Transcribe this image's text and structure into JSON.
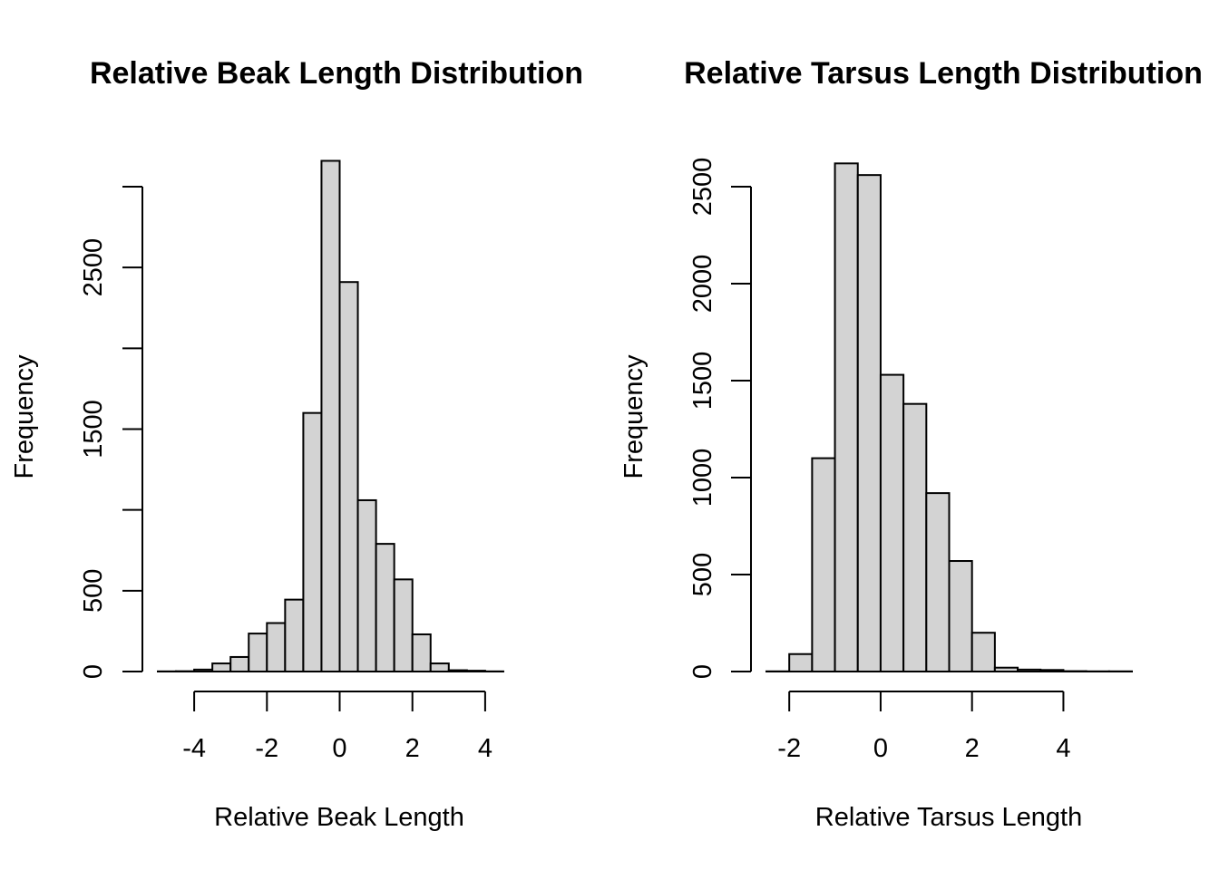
{
  "chart_data": [
    {
      "type": "bar",
      "title": "Relative Beak Length Distribution",
      "xlabel": "Relative Beak Length",
      "ylabel": "Frequency",
      "bin_edges": [
        -5,
        -4.5,
        -4,
        -3.5,
        -3,
        -2.5,
        -2,
        -1.5,
        -1,
        -0.5,
        0,
        0.5,
        1,
        1.5,
        2,
        2.5,
        3,
        3.5,
        4,
        4.5,
        5
      ],
      "values": [
        1,
        2,
        12,
        50,
        90,
        235,
        300,
        445,
        1600,
        3160,
        2410,
        1060,
        790,
        570,
        230,
        50,
        8,
        5,
        1,
        0
      ],
      "xlim": [
        -5,
        5
      ],
      "ylim": [
        0,
        3000
      ],
      "x_ticks": [
        -4,
        -2,
        0,
        2,
        4
      ],
      "x_tick_labels": [
        "-4",
        "-2",
        "0",
        "2",
        "4"
      ],
      "y_ticks": [
        0,
        500,
        1000,
        1500,
        2000,
        2500,
        3000
      ],
      "y_tick_labels": [
        "0",
        "500",
        "",
        "1500",
        "",
        "2500",
        ""
      ],
      "grid": false,
      "legend": "none"
    },
    {
      "type": "bar",
      "title": "Relative Tarsus Length Distribution",
      "xlabel": "Relative Tarsus Length",
      "ylabel": "Frequency",
      "bin_edges": [
        -2.5,
        -2,
        -1.5,
        -1,
        -0.5,
        0,
        0.5,
        1,
        1.5,
        2,
        2.5,
        3,
        3.5,
        4,
        4.5,
        5,
        5.5
      ],
      "values": [
        1,
        90,
        1100,
        2620,
        2560,
        1530,
        1380,
        920,
        570,
        200,
        20,
        10,
        8,
        2,
        1,
        1
      ],
      "xlim": [
        -2.5,
        5.5
      ],
      "ylim": [
        0,
        2500
      ],
      "x_ticks": [
        -2,
        0,
        2,
        4
      ],
      "x_tick_labels": [
        "-2",
        "0",
        "2",
        "4"
      ],
      "y_ticks": [
        0,
        500,
        1000,
        1500,
        2000,
        2500
      ],
      "y_tick_labels": [
        "0",
        "500",
        "1000",
        "1500",
        "2000",
        "2500"
      ],
      "grid": false,
      "legend": "none"
    }
  ]
}
